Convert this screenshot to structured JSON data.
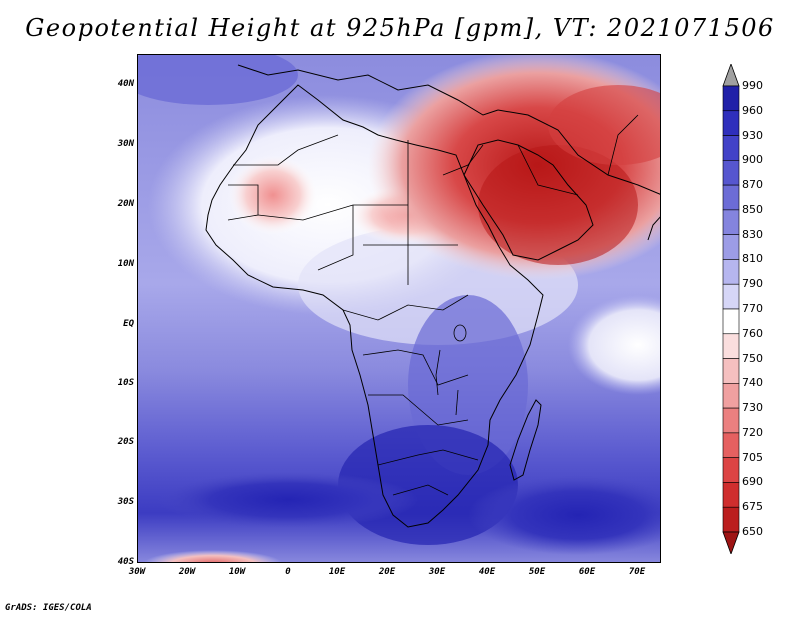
{
  "title": "Geopotential Height at 925hPa [gpm], VT: 2021071506",
  "credit": "GrADS: IGES/COLA",
  "lat_labels": [
    "40N",
    "30N",
    "20N",
    "10N",
    "EQ",
    "10S",
    "20S",
    "30S",
    "40S"
  ],
  "lon_labels": [
    "30W",
    "20W",
    "10W",
    "0",
    "10E",
    "20E",
    "30E",
    "40E",
    "50E",
    "60E",
    "70E"
  ],
  "colorbar": {
    "levels": [
      "990",
      "960",
      "930",
      "900",
      "870",
      "850",
      "830",
      "810",
      "790",
      "770",
      "760",
      "750",
      "740",
      "730",
      "720",
      "705",
      "690",
      "675",
      "650"
    ],
    "colors": [
      "#0f0f85",
      "#2020a8",
      "#2f2fbc",
      "#4242c8",
      "#5656cf",
      "#6c6cd6",
      "#8484de",
      "#9c9ce6",
      "#b6b6ef",
      "#d6d6f7",
      "#ffffff",
      "#fadede",
      "#f5c0c0",
      "#f0a0a0",
      "#eb8080",
      "#e56060",
      "#dc4444",
      "#cf2e2e",
      "#bb1e1e",
      "#9e1414"
    ]
  },
  "colors": {
    "ocean_north": "#8888dd",
    "ocean_south": "#4a4ac4",
    "land_mid": "#c6c6f2",
    "heat_low": "#d84040",
    "boundary": "#000000"
  }
}
